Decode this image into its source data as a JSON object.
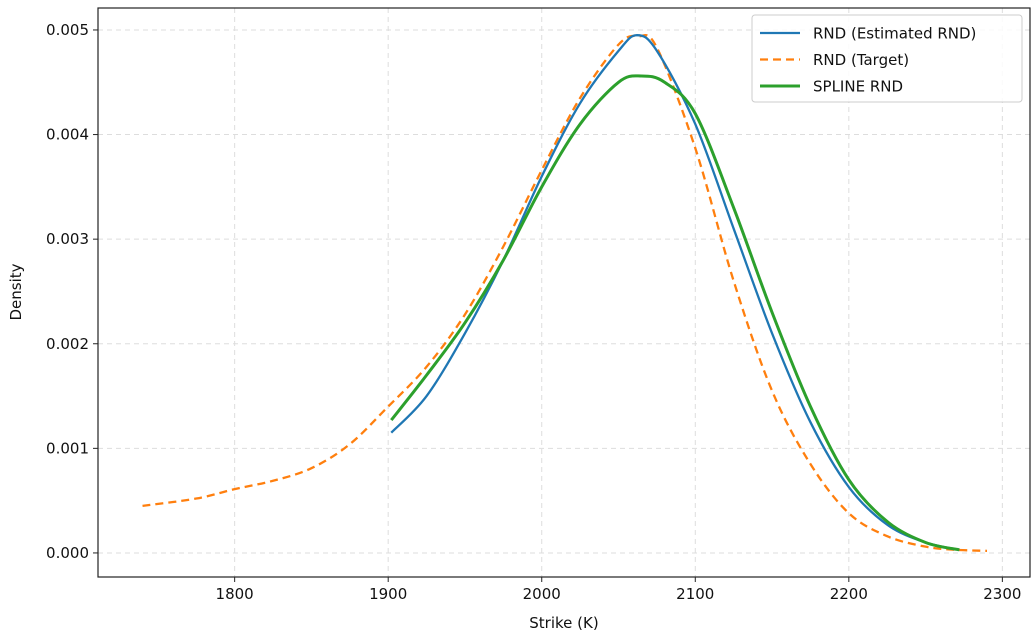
{
  "chart_data": {
    "type": "line",
    "title": "",
    "xlabel": "Strike (K)",
    "ylabel": "Density",
    "xlim": [
      1711,
      2318
    ],
    "ylim": [
      -0.00023,
      0.00521
    ],
    "xticks": [
      1800,
      1900,
      2000,
      2100,
      2200,
      2300
    ],
    "xtick_labels": [
      "1800",
      "1900",
      "2000",
      "2100",
      "2200",
      "2300"
    ],
    "yticks": [
      0.0,
      0.001,
      0.002,
      0.003,
      0.004,
      0.005
    ],
    "ytick_labels": [
      "0.000",
      "0.001",
      "0.002",
      "0.003",
      "0.004",
      "0.005"
    ],
    "grid": true,
    "legend_position": "top-right",
    "series": [
      {
        "name": "RND (Estimated RND)",
        "color": "#1f77b4",
        "style": "solid",
        "x": [
          1902,
          1925,
          1950,
          1975,
          2000,
          2025,
          2050,
          2062,
          2075,
          2100,
          2125,
          2150,
          2175,
          2200,
          2225,
          2250,
          2272
        ],
        "y": [
          0.00115,
          0.0015,
          0.0021,
          0.0028,
          0.0036,
          0.0043,
          0.0048,
          0.00495,
          0.0048,
          0.0041,
          0.0031,
          0.0021,
          0.00125,
          0.00063,
          0.00027,
          0.0001,
          3e-05
        ]
      },
      {
        "name": "RND (Target)",
        "color": "#ff7f0e",
        "style": "dashed",
        "x": [
          1740,
          1775,
          1800,
          1825,
          1850,
          1875,
          1900,
          1925,
          1950,
          1975,
          2000,
          2025,
          2050,
          2063,
          2075,
          2100,
          2125,
          2150,
          2175,
          2200,
          2225,
          2250,
          2270,
          2290
        ],
        "y": [
          0.00045,
          0.00052,
          0.00061,
          0.00069,
          0.00081,
          0.00104,
          0.0014,
          0.00178,
          0.00228,
          0.00293,
          0.00366,
          0.00435,
          0.00486,
          0.00494,
          0.00483,
          0.00387,
          0.0026,
          0.00155,
          0.00085,
          0.00038,
          0.00016,
          6e-05,
          3e-05,
          2e-05
        ]
      },
      {
        "name": "SPLINE RND",
        "color": "#2ca02c",
        "style": "solid",
        "x": [
          1902,
          1925,
          1950,
          1975,
          2000,
          2025,
          2050,
          2065,
          2080,
          2100,
          2125,
          2150,
          2175,
          2200,
          2225,
          2250,
          2272
        ],
        "y": [
          0.00127,
          0.0017,
          0.0022,
          0.0028,
          0.0035,
          0.0041,
          0.0045,
          0.00456,
          0.0045,
          0.0042,
          0.0033,
          0.0023,
          0.0014,
          0.0007,
          0.0003,
          0.0001,
          3e-05
        ]
      }
    ]
  }
}
